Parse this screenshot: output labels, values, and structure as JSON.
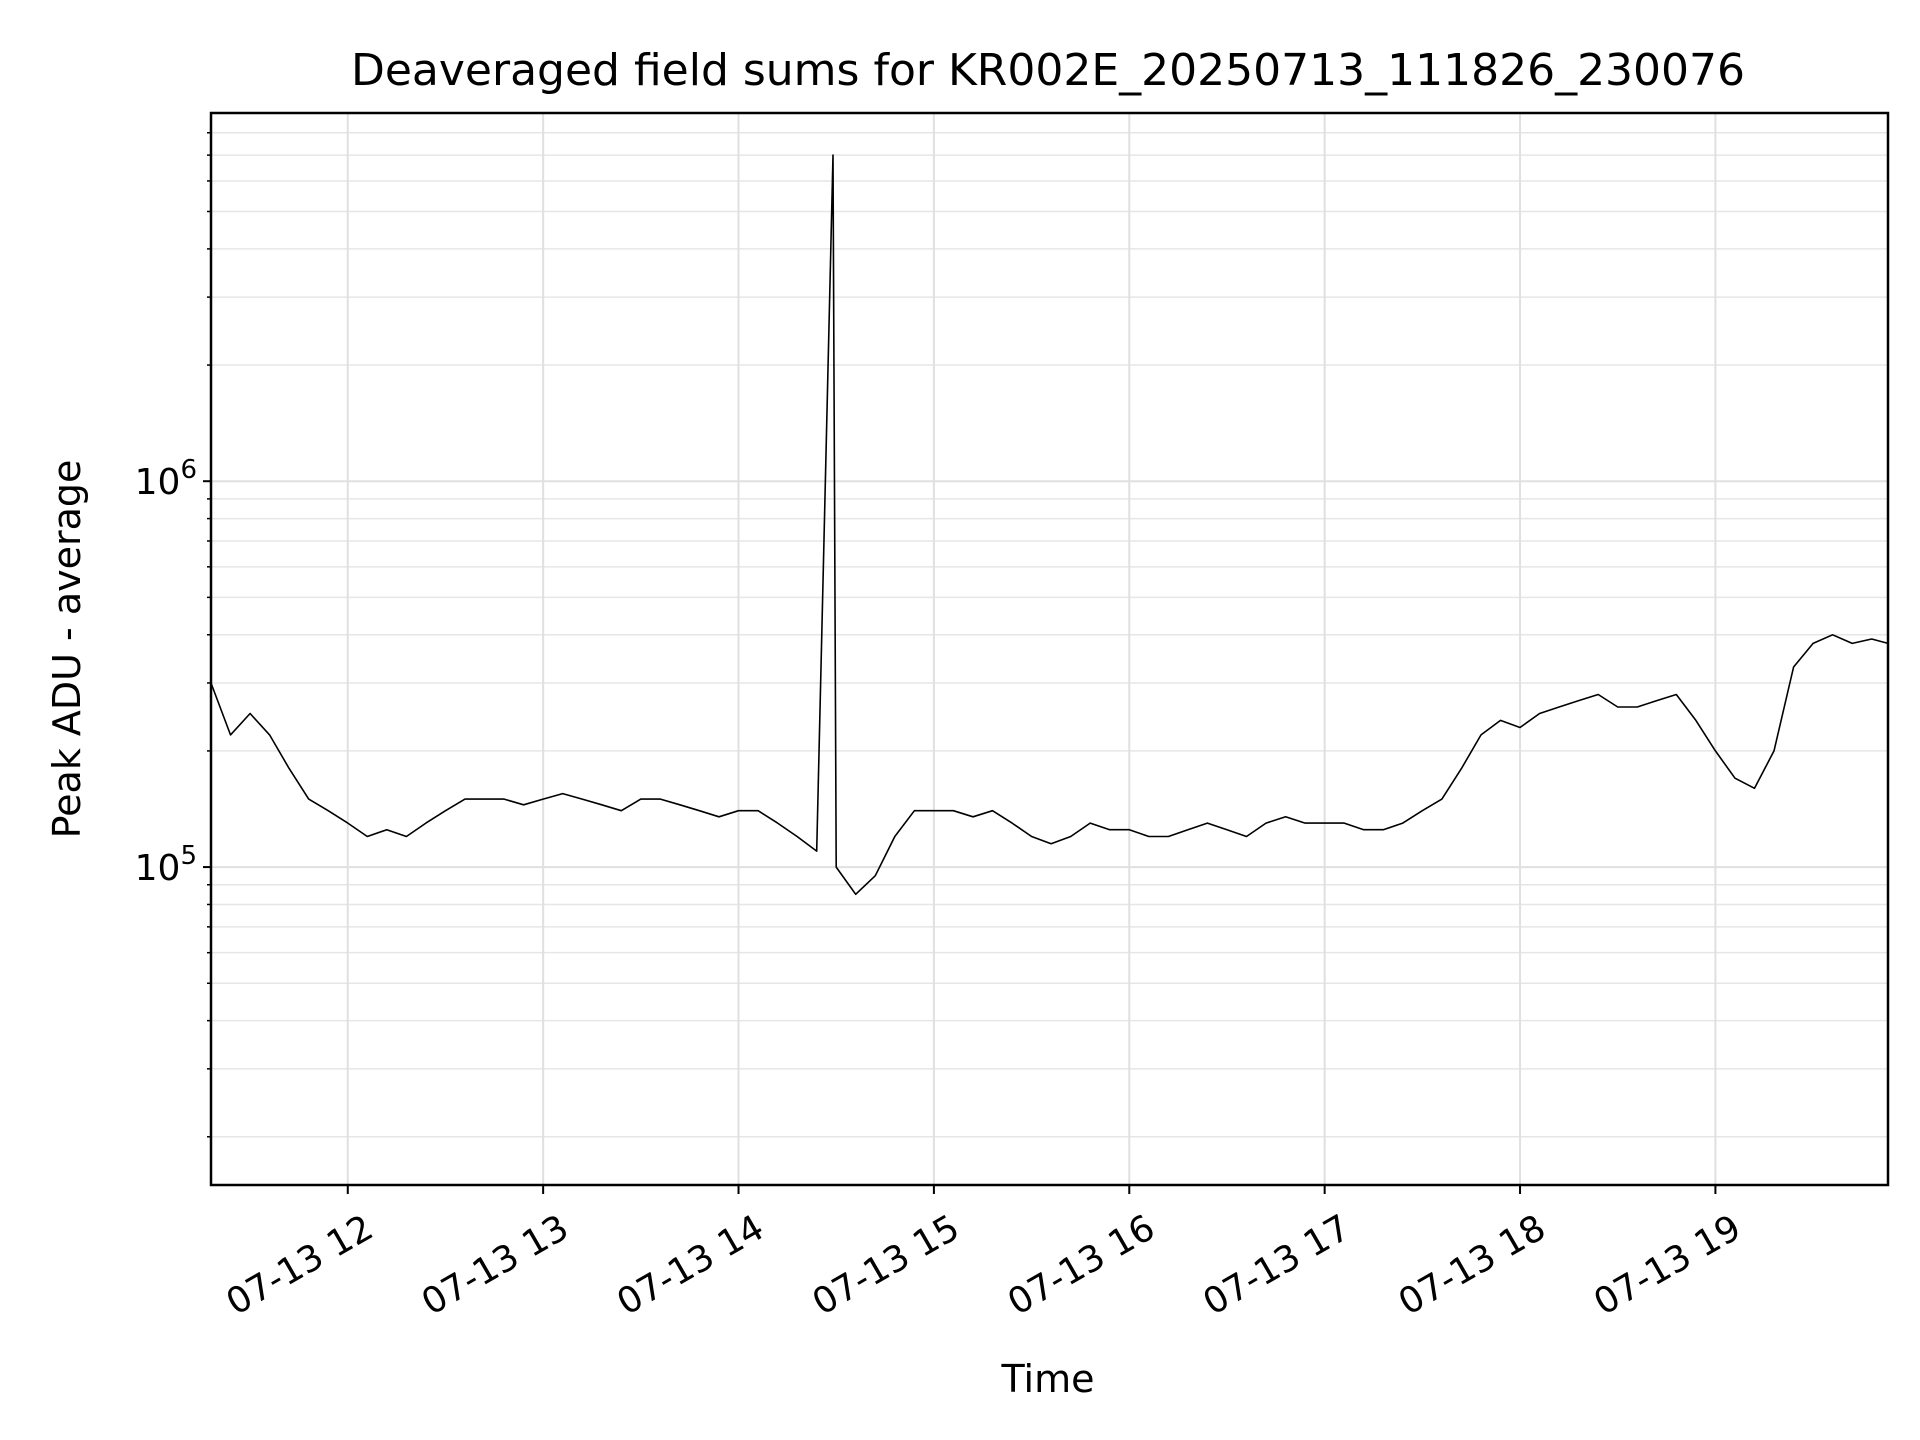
{
  "chart_data": {
    "type": "line",
    "title": "Deaveraged field sums for KR002E_20250713_111826_230076",
    "xlabel": "Time",
    "ylabel": "Peak ADU - average",
    "y_scale": "log",
    "ylim": [
      15000,
      9000000
    ],
    "xlim": [
      "2025-07-13T11:18",
      "2025-07-13T19:53"
    ],
    "grid": true,
    "line_color": "#000000",
    "x_ticks": [
      {
        "value": "2025-07-13T12:00",
        "label": "07-13 12"
      },
      {
        "value": "2025-07-13T13:00",
        "label": "07-13 13"
      },
      {
        "value": "2025-07-13T14:00",
        "label": "07-13 14"
      },
      {
        "value": "2025-07-13T15:00",
        "label": "07-13 15"
      },
      {
        "value": "2025-07-13T16:00",
        "label": "07-13 16"
      },
      {
        "value": "2025-07-13T17:00",
        "label": "07-13 17"
      },
      {
        "value": "2025-07-13T18:00",
        "label": "07-13 18"
      },
      {
        "value": "2025-07-13T19:00",
        "label": "07-13 19"
      }
    ],
    "y_ticks": [
      {
        "value": 100000,
        "base": "10",
        "exp": "5"
      },
      {
        "value": 1000000,
        "base": "10",
        "exp": "6"
      }
    ],
    "series": [
      {
        "points": [
          [
            "2025-07-13T11:18",
            300000
          ],
          [
            "2025-07-13T11:24",
            220000
          ],
          [
            "2025-07-13T11:30",
            250000
          ],
          [
            "2025-07-13T11:36",
            220000
          ],
          [
            "2025-07-13T11:42",
            180000
          ],
          [
            "2025-07-13T11:48",
            150000
          ],
          [
            "2025-07-13T11:54",
            140000
          ],
          [
            "2025-07-13T12:00",
            130000
          ],
          [
            "2025-07-13T12:06",
            120000
          ],
          [
            "2025-07-13T12:12",
            125000
          ],
          [
            "2025-07-13T12:18",
            120000
          ],
          [
            "2025-07-13T12:24",
            130000
          ],
          [
            "2025-07-13T12:30",
            140000
          ],
          [
            "2025-07-13T12:36",
            150000
          ],
          [
            "2025-07-13T12:42",
            150000
          ],
          [
            "2025-07-13T12:48",
            150000
          ],
          [
            "2025-07-13T12:54",
            145000
          ],
          [
            "2025-07-13T13:00",
            150000
          ],
          [
            "2025-07-13T13:06",
            155000
          ],
          [
            "2025-07-13T13:12",
            150000
          ],
          [
            "2025-07-13T13:18",
            145000
          ],
          [
            "2025-07-13T13:24",
            140000
          ],
          [
            "2025-07-13T13:30",
            150000
          ],
          [
            "2025-07-13T13:36",
            150000
          ],
          [
            "2025-07-13T13:42",
            145000
          ],
          [
            "2025-07-13T13:48",
            140000
          ],
          [
            "2025-07-13T13:54",
            135000
          ],
          [
            "2025-07-13T14:00",
            140000
          ],
          [
            "2025-07-13T14:06",
            140000
          ],
          [
            "2025-07-13T14:12",
            130000
          ],
          [
            "2025-07-13T14:18",
            120000
          ],
          [
            "2025-07-13T14:24",
            110000
          ],
          [
            "2025-07-13T14:29",
            7000000
          ],
          [
            "2025-07-13T14:30",
            100000
          ],
          [
            "2025-07-13T14:36",
            85000
          ],
          [
            "2025-07-13T14:42",
            95000
          ],
          [
            "2025-07-13T14:48",
            120000
          ],
          [
            "2025-07-13T14:54",
            140000
          ],
          [
            "2025-07-13T15:00",
            140000
          ],
          [
            "2025-07-13T15:06",
            140000
          ],
          [
            "2025-07-13T15:12",
            135000
          ],
          [
            "2025-07-13T15:18",
            140000
          ],
          [
            "2025-07-13T15:24",
            130000
          ],
          [
            "2025-07-13T15:30",
            120000
          ],
          [
            "2025-07-13T15:36",
            115000
          ],
          [
            "2025-07-13T15:42",
            120000
          ],
          [
            "2025-07-13T15:48",
            130000
          ],
          [
            "2025-07-13T15:54",
            125000
          ],
          [
            "2025-07-13T16:00",
            125000
          ],
          [
            "2025-07-13T16:06",
            120000
          ],
          [
            "2025-07-13T16:12",
            120000
          ],
          [
            "2025-07-13T16:18",
            125000
          ],
          [
            "2025-07-13T16:24",
            130000
          ],
          [
            "2025-07-13T16:30",
            125000
          ],
          [
            "2025-07-13T16:36",
            120000
          ],
          [
            "2025-07-13T16:42",
            130000
          ],
          [
            "2025-07-13T16:48",
            135000
          ],
          [
            "2025-07-13T16:54",
            130000
          ],
          [
            "2025-07-13T17:00",
            130000
          ],
          [
            "2025-07-13T17:06",
            130000
          ],
          [
            "2025-07-13T17:12",
            125000
          ],
          [
            "2025-07-13T17:18",
            125000
          ],
          [
            "2025-07-13T17:24",
            130000
          ],
          [
            "2025-07-13T17:30",
            140000
          ],
          [
            "2025-07-13T17:36",
            150000
          ],
          [
            "2025-07-13T17:42",
            180000
          ],
          [
            "2025-07-13T17:48",
            220000
          ],
          [
            "2025-07-13T17:54",
            240000
          ],
          [
            "2025-07-13T18:00",
            230000
          ],
          [
            "2025-07-13T18:06",
            250000
          ],
          [
            "2025-07-13T18:12",
            260000
          ],
          [
            "2025-07-13T18:18",
            270000
          ],
          [
            "2025-07-13T18:24",
            280000
          ],
          [
            "2025-07-13T18:30",
            260000
          ],
          [
            "2025-07-13T18:36",
            260000
          ],
          [
            "2025-07-13T18:42",
            270000
          ],
          [
            "2025-07-13T18:48",
            280000
          ],
          [
            "2025-07-13T18:54",
            240000
          ],
          [
            "2025-07-13T19:00",
            200000
          ],
          [
            "2025-07-13T19:06",
            170000
          ],
          [
            "2025-07-13T19:12",
            160000
          ],
          [
            "2025-07-13T19:18",
            200000
          ],
          [
            "2025-07-13T19:24",
            330000
          ],
          [
            "2025-07-13T19:30",
            380000
          ],
          [
            "2025-07-13T19:36",
            400000
          ],
          [
            "2025-07-13T19:42",
            380000
          ],
          [
            "2025-07-13T19:48",
            390000
          ],
          [
            "2025-07-13T19:53",
            380000
          ]
        ]
      }
    ]
  }
}
